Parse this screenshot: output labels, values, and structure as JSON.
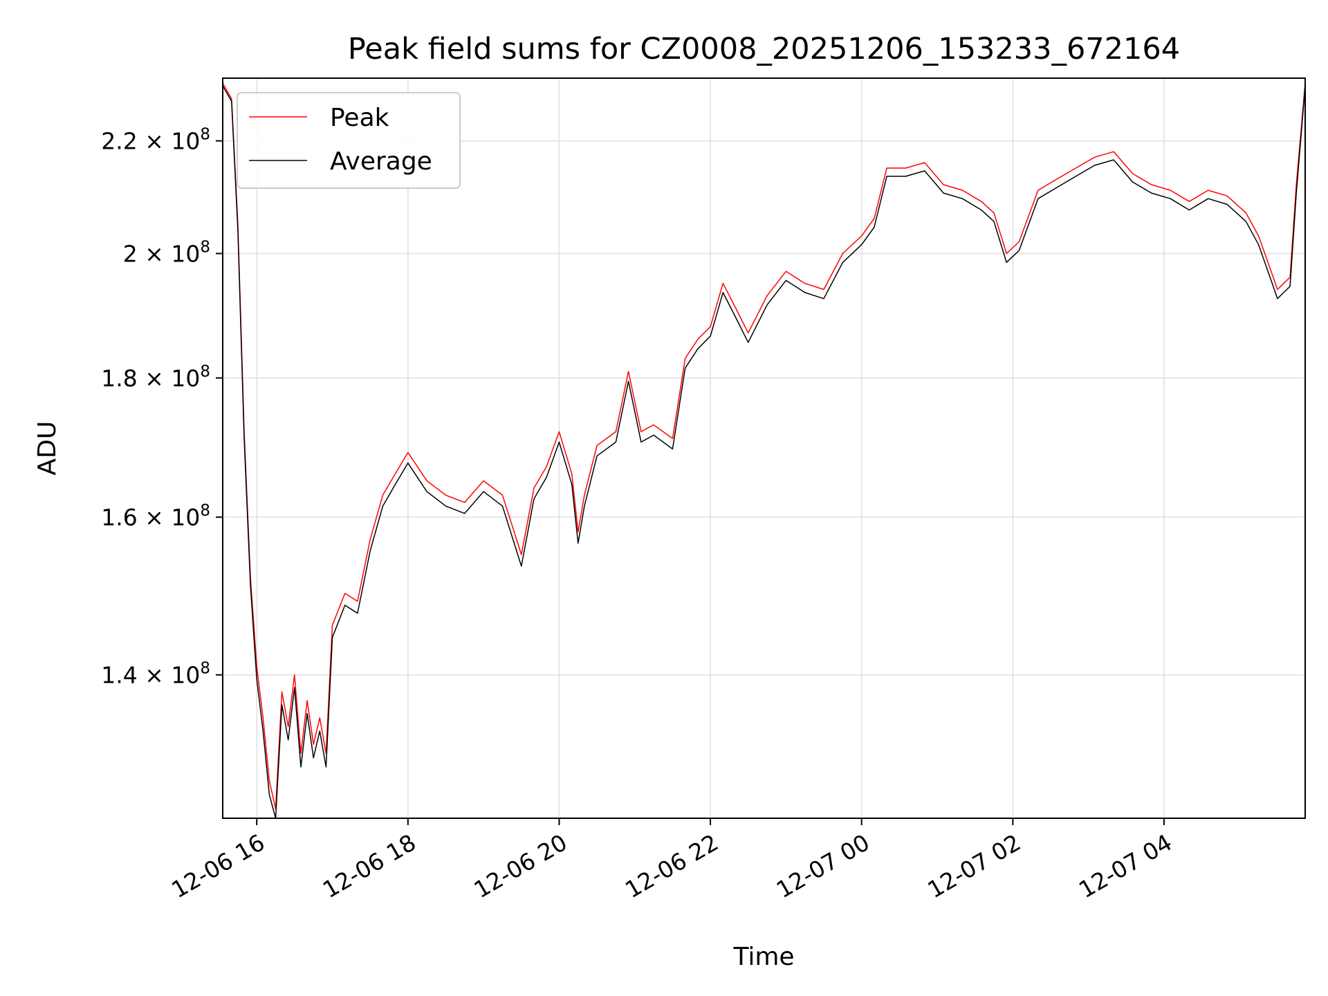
{
  "chart_data": {
    "type": "line",
    "title": "Peak field sums for CZ0008_20251206_153233_672164",
    "xlabel": "Time",
    "ylabel": "ADU",
    "y_scale": "log",
    "xlim": [
      "2025-12-06 15:33",
      "2025-12-07 05:52"
    ],
    "ylim": [
      124000000,
      232000000
    ],
    "grid": true,
    "legend_position": "top-left",
    "x_ticks": [
      {
        "t": "2025-12-06 16:00",
        "label": "12-06 16"
      },
      {
        "t": "2025-12-06 18:00",
        "label": "12-06 18"
      },
      {
        "t": "2025-12-06 20:00",
        "label": "12-06 20"
      },
      {
        "t": "2025-12-06 22:00",
        "label": "12-06 22"
      },
      {
        "t": "2025-12-07 00:00",
        "label": "12-07 00"
      },
      {
        "t": "2025-12-07 02:00",
        "label": "12-07 02"
      },
      {
        "t": "2025-12-07 04:00",
        "label": "12-07 04"
      }
    ],
    "y_ticks": [
      {
        "value": 140000000,
        "mantissa": "1.4",
        "exp": "8"
      },
      {
        "value": 160000000,
        "mantissa": "1.6",
        "exp": "8"
      },
      {
        "value": 180000000,
        "mantissa": "1.8",
        "exp": "8"
      },
      {
        "value": 200000000,
        "mantissa": "2",
        "exp": "8"
      },
      {
        "value": 220000000,
        "mantissa": "2.2",
        "exp": "8"
      }
    ],
    "series": [
      {
        "name": "Peak",
        "color": "#ff0000",
        "x": [
          "2025-12-06 15:33",
          "2025-12-06 15:40",
          "2025-12-06 15:45",
          "2025-12-06 15:50",
          "2025-12-06 15:55",
          "2025-12-06 16:00",
          "2025-12-06 16:05",
          "2025-12-06 16:10",
          "2025-12-06 16:15",
          "2025-12-06 16:20",
          "2025-12-06 16:25",
          "2025-12-06 16:30",
          "2025-12-06 16:35",
          "2025-12-06 16:40",
          "2025-12-06 16:45",
          "2025-12-06 16:50",
          "2025-12-06 16:55",
          "2025-12-06 17:00",
          "2025-12-06 17:10",
          "2025-12-06 17:20",
          "2025-12-06 17:30",
          "2025-12-06 17:40",
          "2025-12-06 17:50",
          "2025-12-06 18:00",
          "2025-12-06 18:15",
          "2025-12-06 18:30",
          "2025-12-06 18:45",
          "2025-12-06 19:00",
          "2025-12-06 19:15",
          "2025-12-06 19:30",
          "2025-12-06 19:40",
          "2025-12-06 19:50",
          "2025-12-06 20:00",
          "2025-12-06 20:10",
          "2025-12-06 20:15",
          "2025-12-06 20:20",
          "2025-12-06 20:30",
          "2025-12-06 20:45",
          "2025-12-06 20:55",
          "2025-12-06 21:05",
          "2025-12-06 21:15",
          "2025-12-06 21:30",
          "2025-12-06 21:40",
          "2025-12-06 21:50",
          "2025-12-06 22:00",
          "2025-12-06 22:10",
          "2025-12-06 22:20",
          "2025-12-06 22:30",
          "2025-12-06 22:45",
          "2025-12-06 23:00",
          "2025-12-06 23:15",
          "2025-12-06 23:30",
          "2025-12-06 23:45",
          "2025-12-07 00:00",
          "2025-12-07 00:10",
          "2025-12-07 00:20",
          "2025-12-07 00:35",
          "2025-12-07 00:50",
          "2025-12-07 01:05",
          "2025-12-07 01:20",
          "2025-12-07 01:35",
          "2025-12-07 01:45",
          "2025-12-07 01:55",
          "2025-12-07 02:05",
          "2025-12-07 02:20",
          "2025-12-07 02:35",
          "2025-12-07 02:50",
          "2025-12-07 03:05",
          "2025-12-07 03:20",
          "2025-12-07 03:35",
          "2025-12-07 03:50",
          "2025-12-07 04:05",
          "2025-12-07 04:20",
          "2025-12-07 04:35",
          "2025-12-07 04:50",
          "2025-12-07 05:05",
          "2025-12-07 05:15",
          "2025-12-07 05:25",
          "2025-12-07 05:30",
          "2025-12-07 05:35",
          "2025-12-07 05:40",
          "2025-12-07 05:45",
          "2025-12-07 05:52"
        ],
        "values": [
          231000000,
          228000000,
          205000000,
          172000000,
          152000000,
          141000000,
          135000000,
          128000000,
          125000000,
          138000000,
          134000000,
          140000000,
          131000000,
          137000000,
          132000000,
          135000000,
          131000000,
          146000000,
          150000000,
          149000000,
          157000000,
          163000000,
          166000000,
          169000000,
          165000000,
          163000000,
          162000000,
          165000000,
          163000000,
          155000000,
          164000000,
          167000000,
          172000000,
          166000000,
          158000000,
          163000000,
          170000000,
          172000000,
          181000000,
          172000000,
          173000000,
          171000000,
          183000000,
          186000000,
          188000000,
          195000000,
          191000000,
          187000000,
          193000000,
          197000000,
          195000000,
          194000000,
          200000000,
          203000000,
          206000000,
          215000000,
          215000000,
          216000000,
          212000000,
          211000000,
          209000000,
          207000000,
          200000000,
          202000000,
          211000000,
          213000000,
          215000000,
          217000000,
          218000000,
          214000000,
          212000000,
          211000000,
          209000000,
          211000000,
          210000000,
          207000000,
          203000000,
          197000000,
          194000000,
          195000000,
          196000000,
          212000000,
          231000000
        ]
      },
      {
        "name": "Average",
        "color": "#000000",
        "x": [
          "2025-12-06 15:33",
          "2025-12-06 15:40",
          "2025-12-06 15:45",
          "2025-12-06 15:50",
          "2025-12-06 15:55",
          "2025-12-06 16:00",
          "2025-12-06 16:05",
          "2025-12-06 16:10",
          "2025-12-06 16:15",
          "2025-12-06 16:20",
          "2025-12-06 16:25",
          "2025-12-06 16:30",
          "2025-12-06 16:35",
          "2025-12-06 16:40",
          "2025-12-06 16:45",
          "2025-12-06 16:50",
          "2025-12-06 16:55",
          "2025-12-06 17:00",
          "2025-12-06 17:10",
          "2025-12-06 17:20",
          "2025-12-06 17:30",
          "2025-12-06 17:40",
          "2025-12-06 17:50",
          "2025-12-06 18:00",
          "2025-12-06 18:15",
          "2025-12-06 18:30",
          "2025-12-06 18:45",
          "2025-12-06 19:00",
          "2025-12-06 19:15",
          "2025-12-06 19:30",
          "2025-12-06 19:40",
          "2025-12-06 19:50",
          "2025-12-06 20:00",
          "2025-12-06 20:10",
          "2025-12-06 20:15",
          "2025-12-06 20:20",
          "2025-12-06 20:30",
          "2025-12-06 20:45",
          "2025-12-06 20:55",
          "2025-12-06 21:05",
          "2025-12-06 21:15",
          "2025-12-06 21:30",
          "2025-12-06 21:40",
          "2025-12-06 21:50",
          "2025-12-06 22:00",
          "2025-12-06 22:10",
          "2025-12-06 22:20",
          "2025-12-06 22:30",
          "2025-12-06 22:45",
          "2025-12-06 23:00",
          "2025-12-06 23:15",
          "2025-12-06 23:30",
          "2025-12-06 23:45",
          "2025-12-07 00:00",
          "2025-12-07 00:10",
          "2025-12-07 00:20",
          "2025-12-07 00:35",
          "2025-12-07 00:50",
          "2025-12-07 01:05",
          "2025-12-07 01:20",
          "2025-12-07 01:35",
          "2025-12-07 01:45",
          "2025-12-07 01:55",
          "2025-12-07 02:05",
          "2025-12-07 02:20",
          "2025-12-07 02:35",
          "2025-12-07 02:50",
          "2025-12-07 03:05",
          "2025-12-07 03:20",
          "2025-12-07 03:35",
          "2025-12-07 03:50",
          "2025-12-07 04:05",
          "2025-12-07 04:20",
          "2025-12-07 04:35",
          "2025-12-07 04:50",
          "2025-12-07 05:05",
          "2025-12-07 05:15",
          "2025-12-07 05:25",
          "2025-12-07 05:30",
          "2025-12-07 05:35",
          "2025-12-07 05:40",
          "2025-12-07 05:45",
          "2025-12-07 05:52"
        ],
        "values": [
          230500000,
          227500000,
          204000000,
          171000000,
          151000000,
          139500000,
          133500000,
          126500000,
          124000000,
          136500000,
          132500000,
          138500000,
          129500000,
          135500000,
          130500000,
          133500000,
          129500000,
          144500000,
          148500000,
          147500000,
          155500000,
          161500000,
          164500000,
          167500000,
          163500000,
          161500000,
          160500000,
          163500000,
          161500000,
          153500000,
          162500000,
          165500000,
          170500000,
          164500000,
          156500000,
          161500000,
          168500000,
          170500000,
          179500000,
          170500000,
          171500000,
          169500000,
          181500000,
          184500000,
          186500000,
          193500000,
          189500000,
          185500000,
          191500000,
          195500000,
          193500000,
          192500000,
          198500000,
          201500000,
          204500000,
          213500000,
          213500000,
          214500000,
          210500000,
          209500000,
          207500000,
          205500000,
          198500000,
          200500000,
          209500000,
          211500000,
          213500000,
          215500000,
          216500000,
          212500000,
          210500000,
          209500000,
          207500000,
          209500000,
          208500000,
          205500000,
          201500000,
          195500000,
          192500000,
          193500000,
          194500000,
          210500000,
          230500000
        ]
      }
    ]
  }
}
